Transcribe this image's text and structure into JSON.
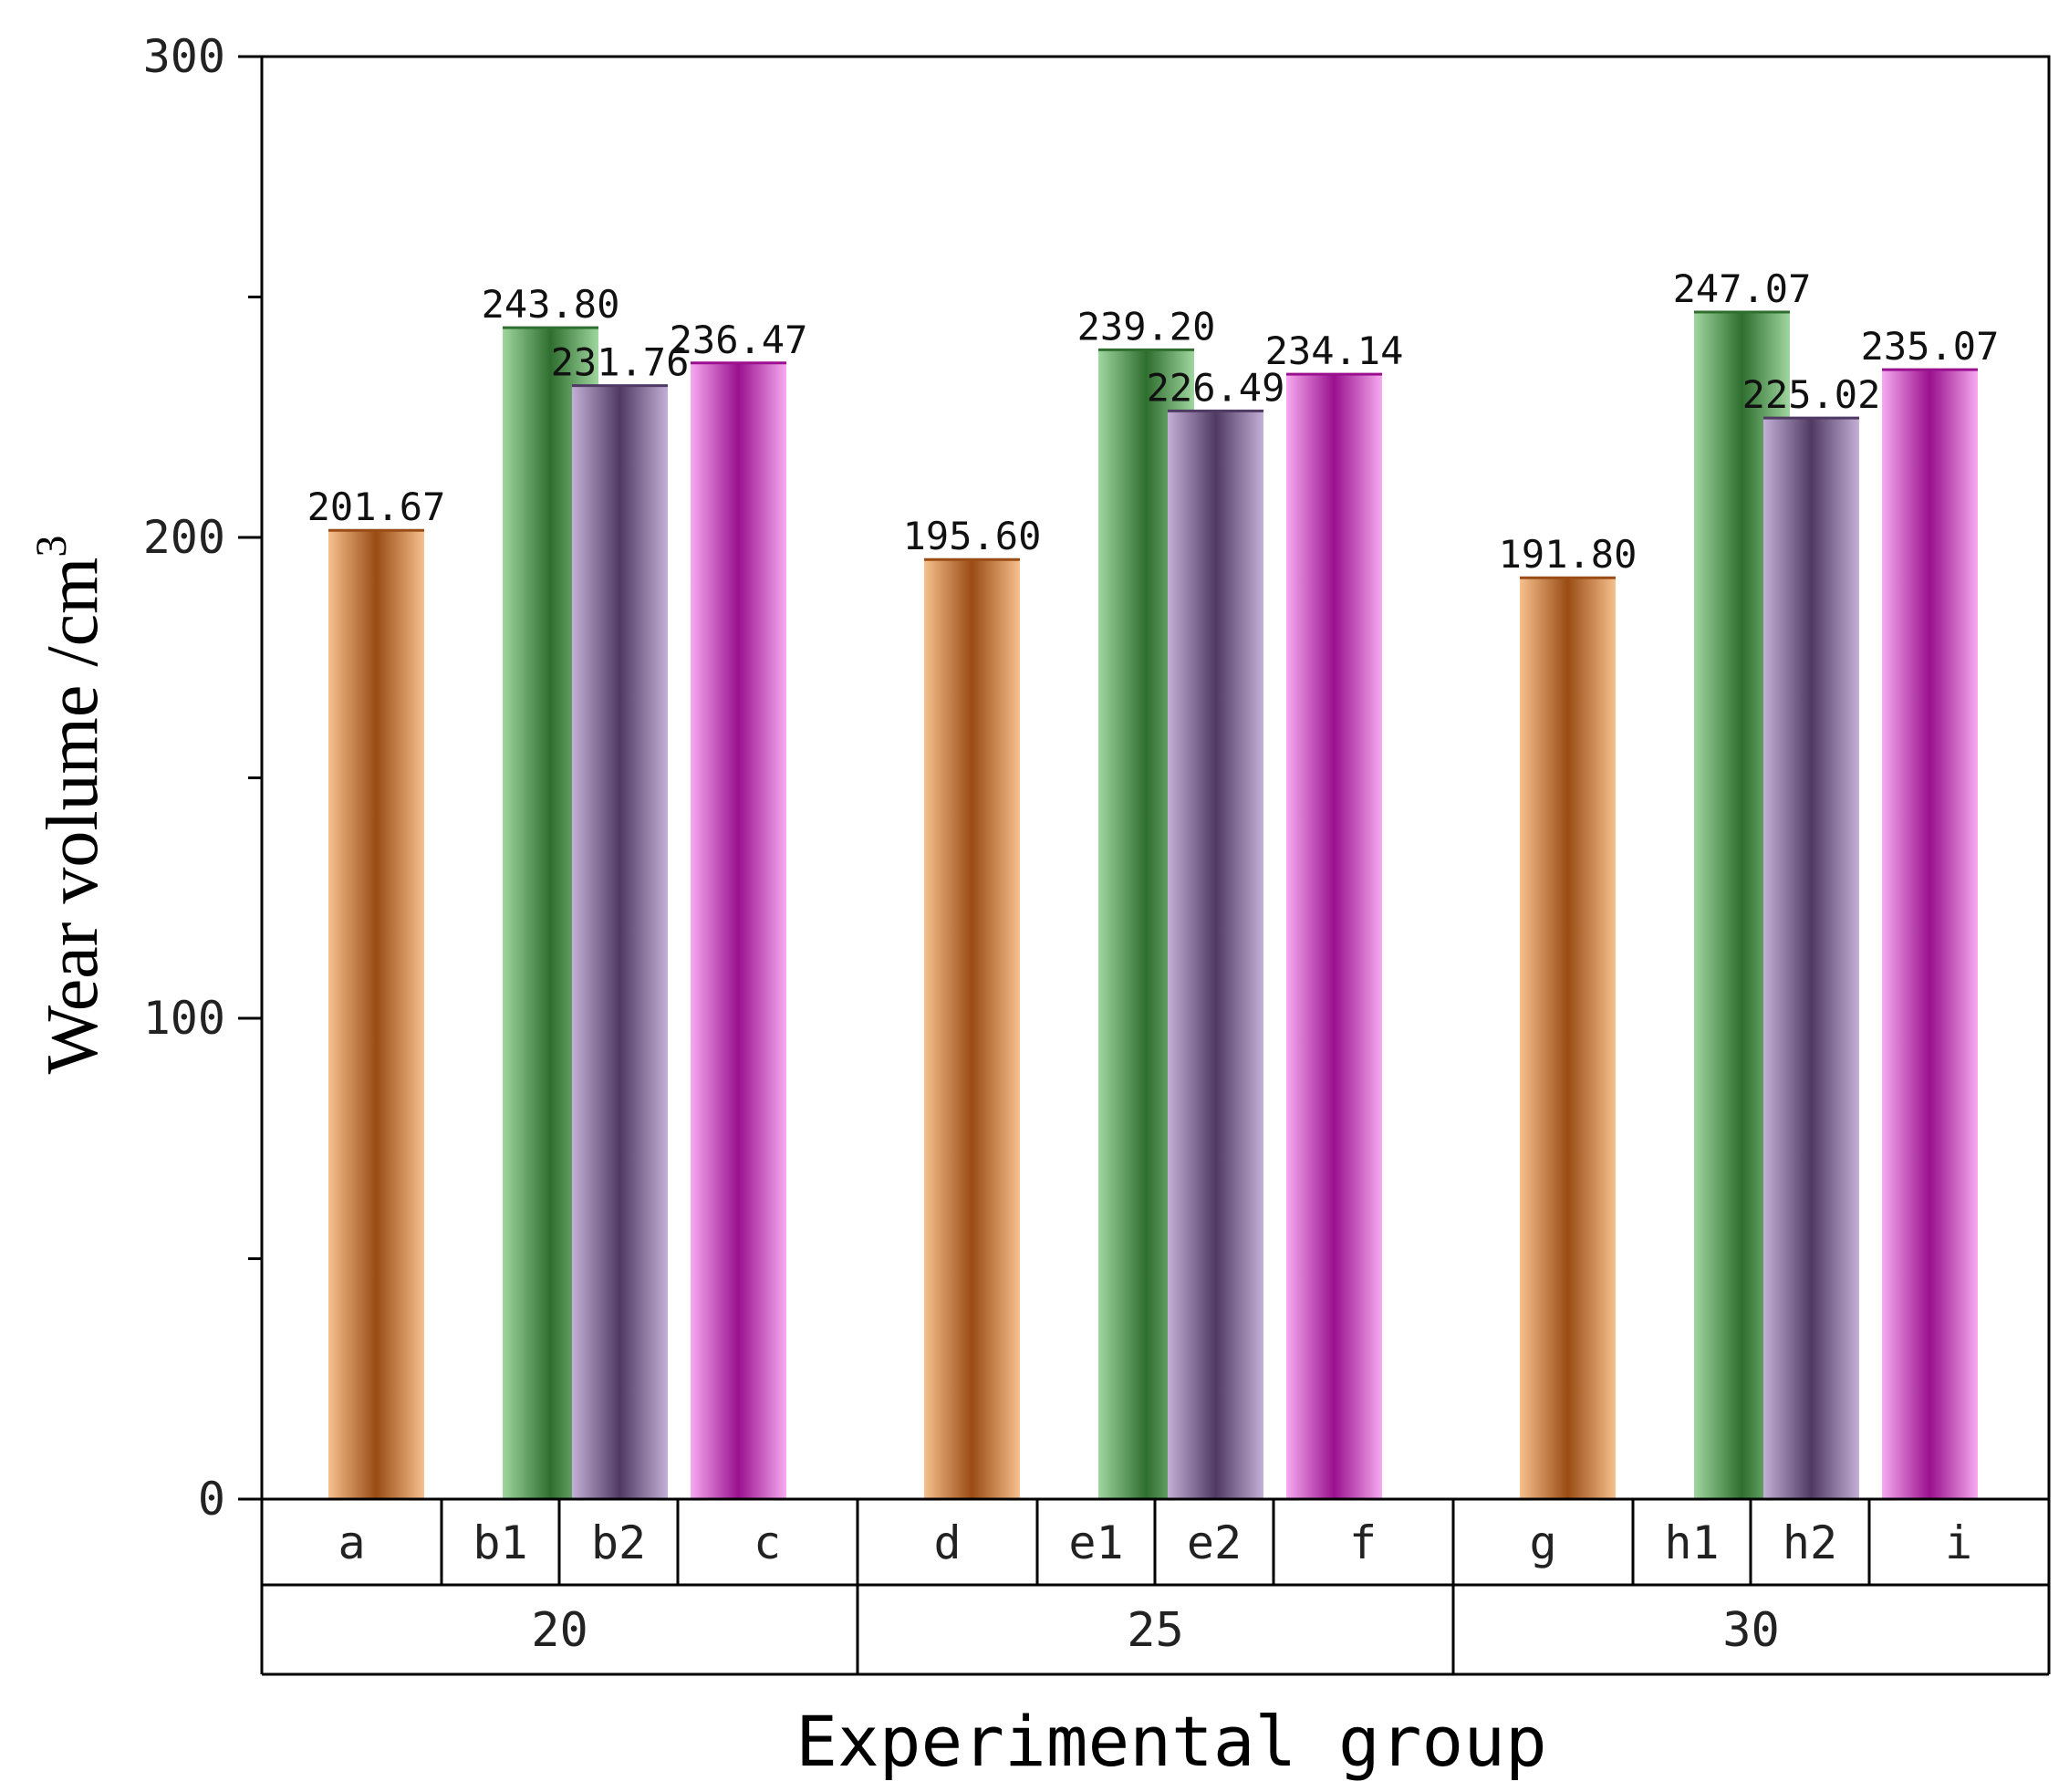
{
  "chart_data": {
    "type": "bar",
    "title": "",
    "xlabel": "Experimental group",
    "ylabel": "Wear volume  /cm",
    "ylabel_superscript": "3",
    "ylim": [
      0,
      300
    ],
    "yticks": [
      0,
      100,
      200,
      300
    ],
    "ytick_labels": [
      "0",
      "100",
      "200",
      "300"
    ],
    "grid": false,
    "groups": [
      {
        "label": "20",
        "categories": [
          "a",
          "b1",
          "b2",
          "c"
        ],
        "values": [
          201.67,
          243.8,
          231.76,
          236.47
        ],
        "value_labels": [
          "201.67",
          "243.80",
          "231.76",
          "236.47"
        ]
      },
      {
        "label": "25",
        "categories": [
          "d",
          "e1",
          "e2",
          "f"
        ],
        "values": [
          195.6,
          239.2,
          226.49,
          234.14
        ],
        "value_labels": [
          "195.60",
          "239.20",
          "226.49",
          "234.14"
        ]
      },
      {
        "label": "30",
        "categories": [
          "g",
          "h1",
          "h2",
          "i"
        ],
        "values": [
          191.8,
          247.07,
          225.02,
          235.07
        ],
        "value_labels": [
          "191.80",
          "247.07",
          "225.02",
          "235.07"
        ]
      }
    ],
    "series_colors": [
      {
        "name": "orange",
        "light": "#f6c08e",
        "dark": "#9a4c14"
      },
      {
        "name": "green",
        "light": "#9fd69f",
        "dark": "#2e6e2e"
      },
      {
        "name": "purple",
        "light": "#c4b0d6",
        "dark": "#4f3a64"
      },
      {
        "name": "magenta",
        "light": "#f6aaf0",
        "dark": "#9a108e"
      }
    ]
  }
}
